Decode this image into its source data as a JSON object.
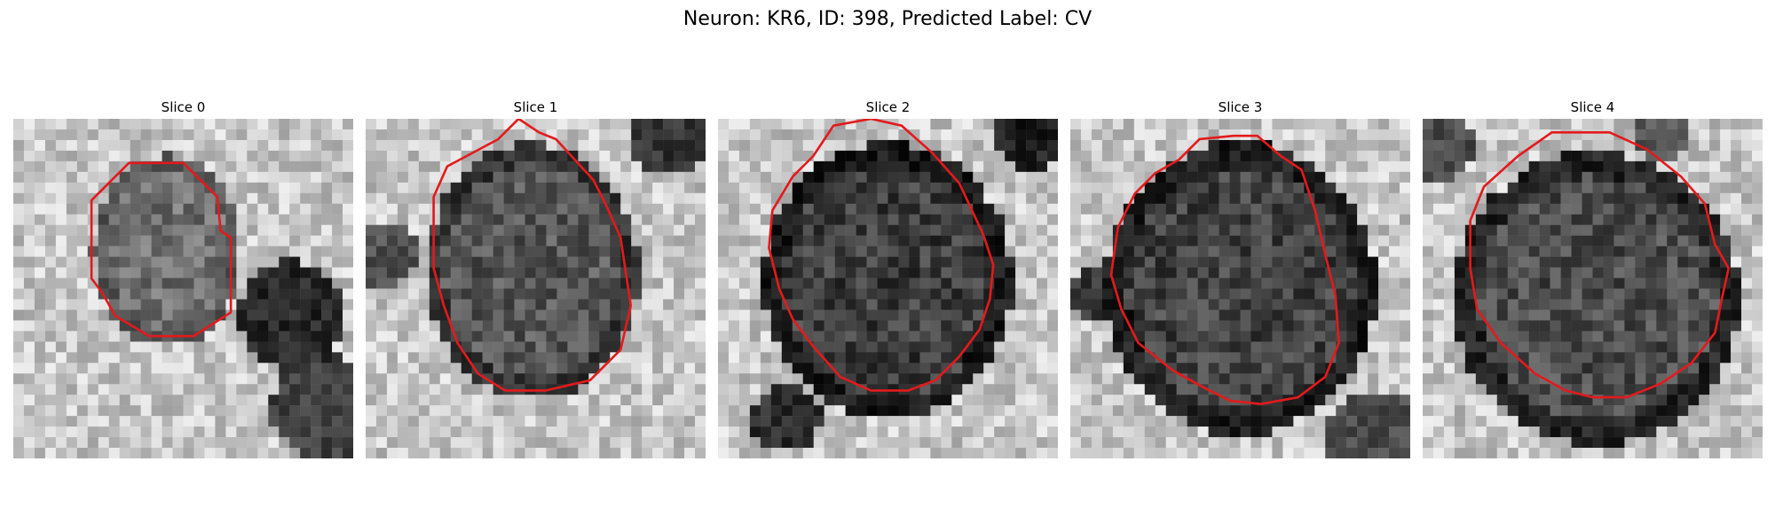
{
  "figure": {
    "title": "Neuron: KR6, ID: 398, Predicted Label: CV"
  },
  "colors": {
    "contour": "#e31a1c",
    "image_colormap": "grayscale"
  },
  "panels": [
    {
      "title": "Slice 0",
      "region_size": "small",
      "background": "light"
    },
    {
      "title": "Slice 1",
      "region_size": "medium",
      "background": "light"
    },
    {
      "title": "Slice 2",
      "region_size": "large",
      "background": "mixed"
    },
    {
      "title": "Slice 3",
      "region_size": "large",
      "background": "light"
    },
    {
      "title": "Slice 4",
      "region_size": "large",
      "background": "light"
    }
  ]
}
